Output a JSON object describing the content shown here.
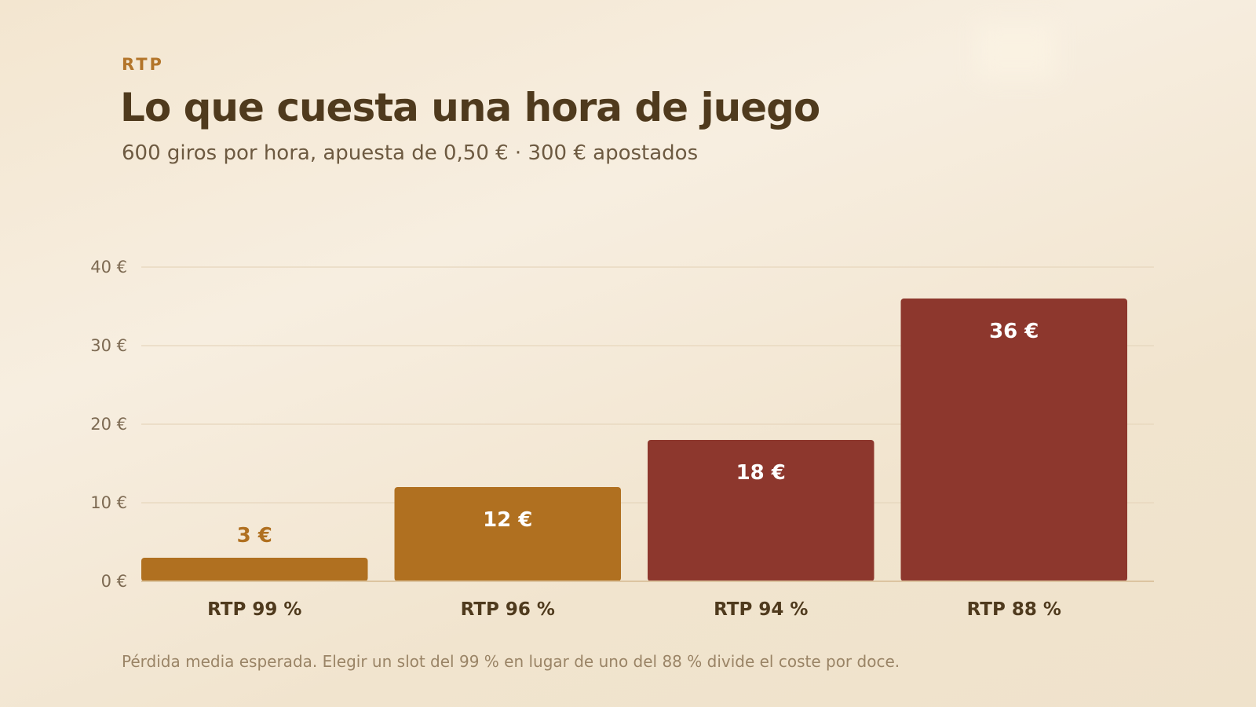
{
  "header": {
    "eyebrow": "RTP",
    "title": "Lo que cuesta una hora de juego",
    "subtitle": "600 giros por hora, apuesta de 0,50 € · 300 € apostados"
  },
  "footnote": "Pérdida media esperada. Elegir un slot del 99 % en lugar de uno del 88 % divide el coste por doce.",
  "colors": {
    "gold": "#b07020",
    "red": "#8d372d",
    "grid": "#e6d6bd",
    "axis": "#dcc4a0"
  },
  "chart_data": {
    "type": "bar",
    "categories": [
      "RTP 99 %",
      "RTP 96 %",
      "RTP 94 %",
      "RTP 88 %"
    ],
    "values": [
      3,
      12,
      18,
      36
    ],
    "value_labels": [
      "3 €",
      "12 €",
      "18 €",
      "36 €"
    ],
    "bar_colors": [
      "#b07020",
      "#b07020",
      "#8d372d",
      "#8d372d"
    ],
    "label_position": [
      "outside",
      "inside",
      "inside",
      "inside"
    ],
    "ylim": [
      0,
      40
    ],
    "yticks": [
      0,
      10,
      20,
      30,
      40
    ],
    "ytick_labels": [
      "0 €",
      "10 €",
      "20 €",
      "30 €",
      "40 €"
    ],
    "grid": true,
    "legend": false
  }
}
